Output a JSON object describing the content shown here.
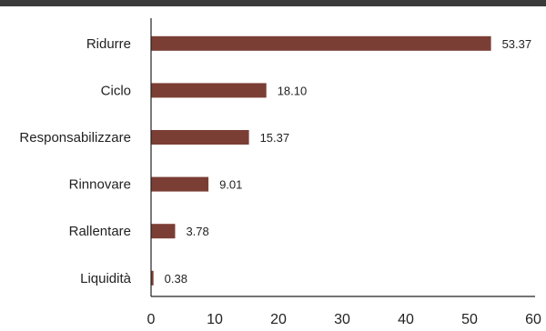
{
  "chart_data": {
    "type": "bar",
    "orientation": "horizontal",
    "categories": [
      "Ridurre",
      "Ciclo",
      "Responsabilizzare",
      "Rinnovare",
      "Rallentare",
      "Liquidità"
    ],
    "values": [
      53.37,
      18.1,
      15.37,
      9.01,
      3.78,
      0.38
    ],
    "value_labels": [
      "53.37",
      "18.10",
      "15.37",
      "9.01",
      "3.78",
      "0.38"
    ],
    "xlim": [
      0,
      60
    ],
    "x_ticks": [
      0,
      10,
      20,
      30,
      40,
      50,
      60
    ],
    "bar_color": "#7b3e35",
    "grid": false
  }
}
